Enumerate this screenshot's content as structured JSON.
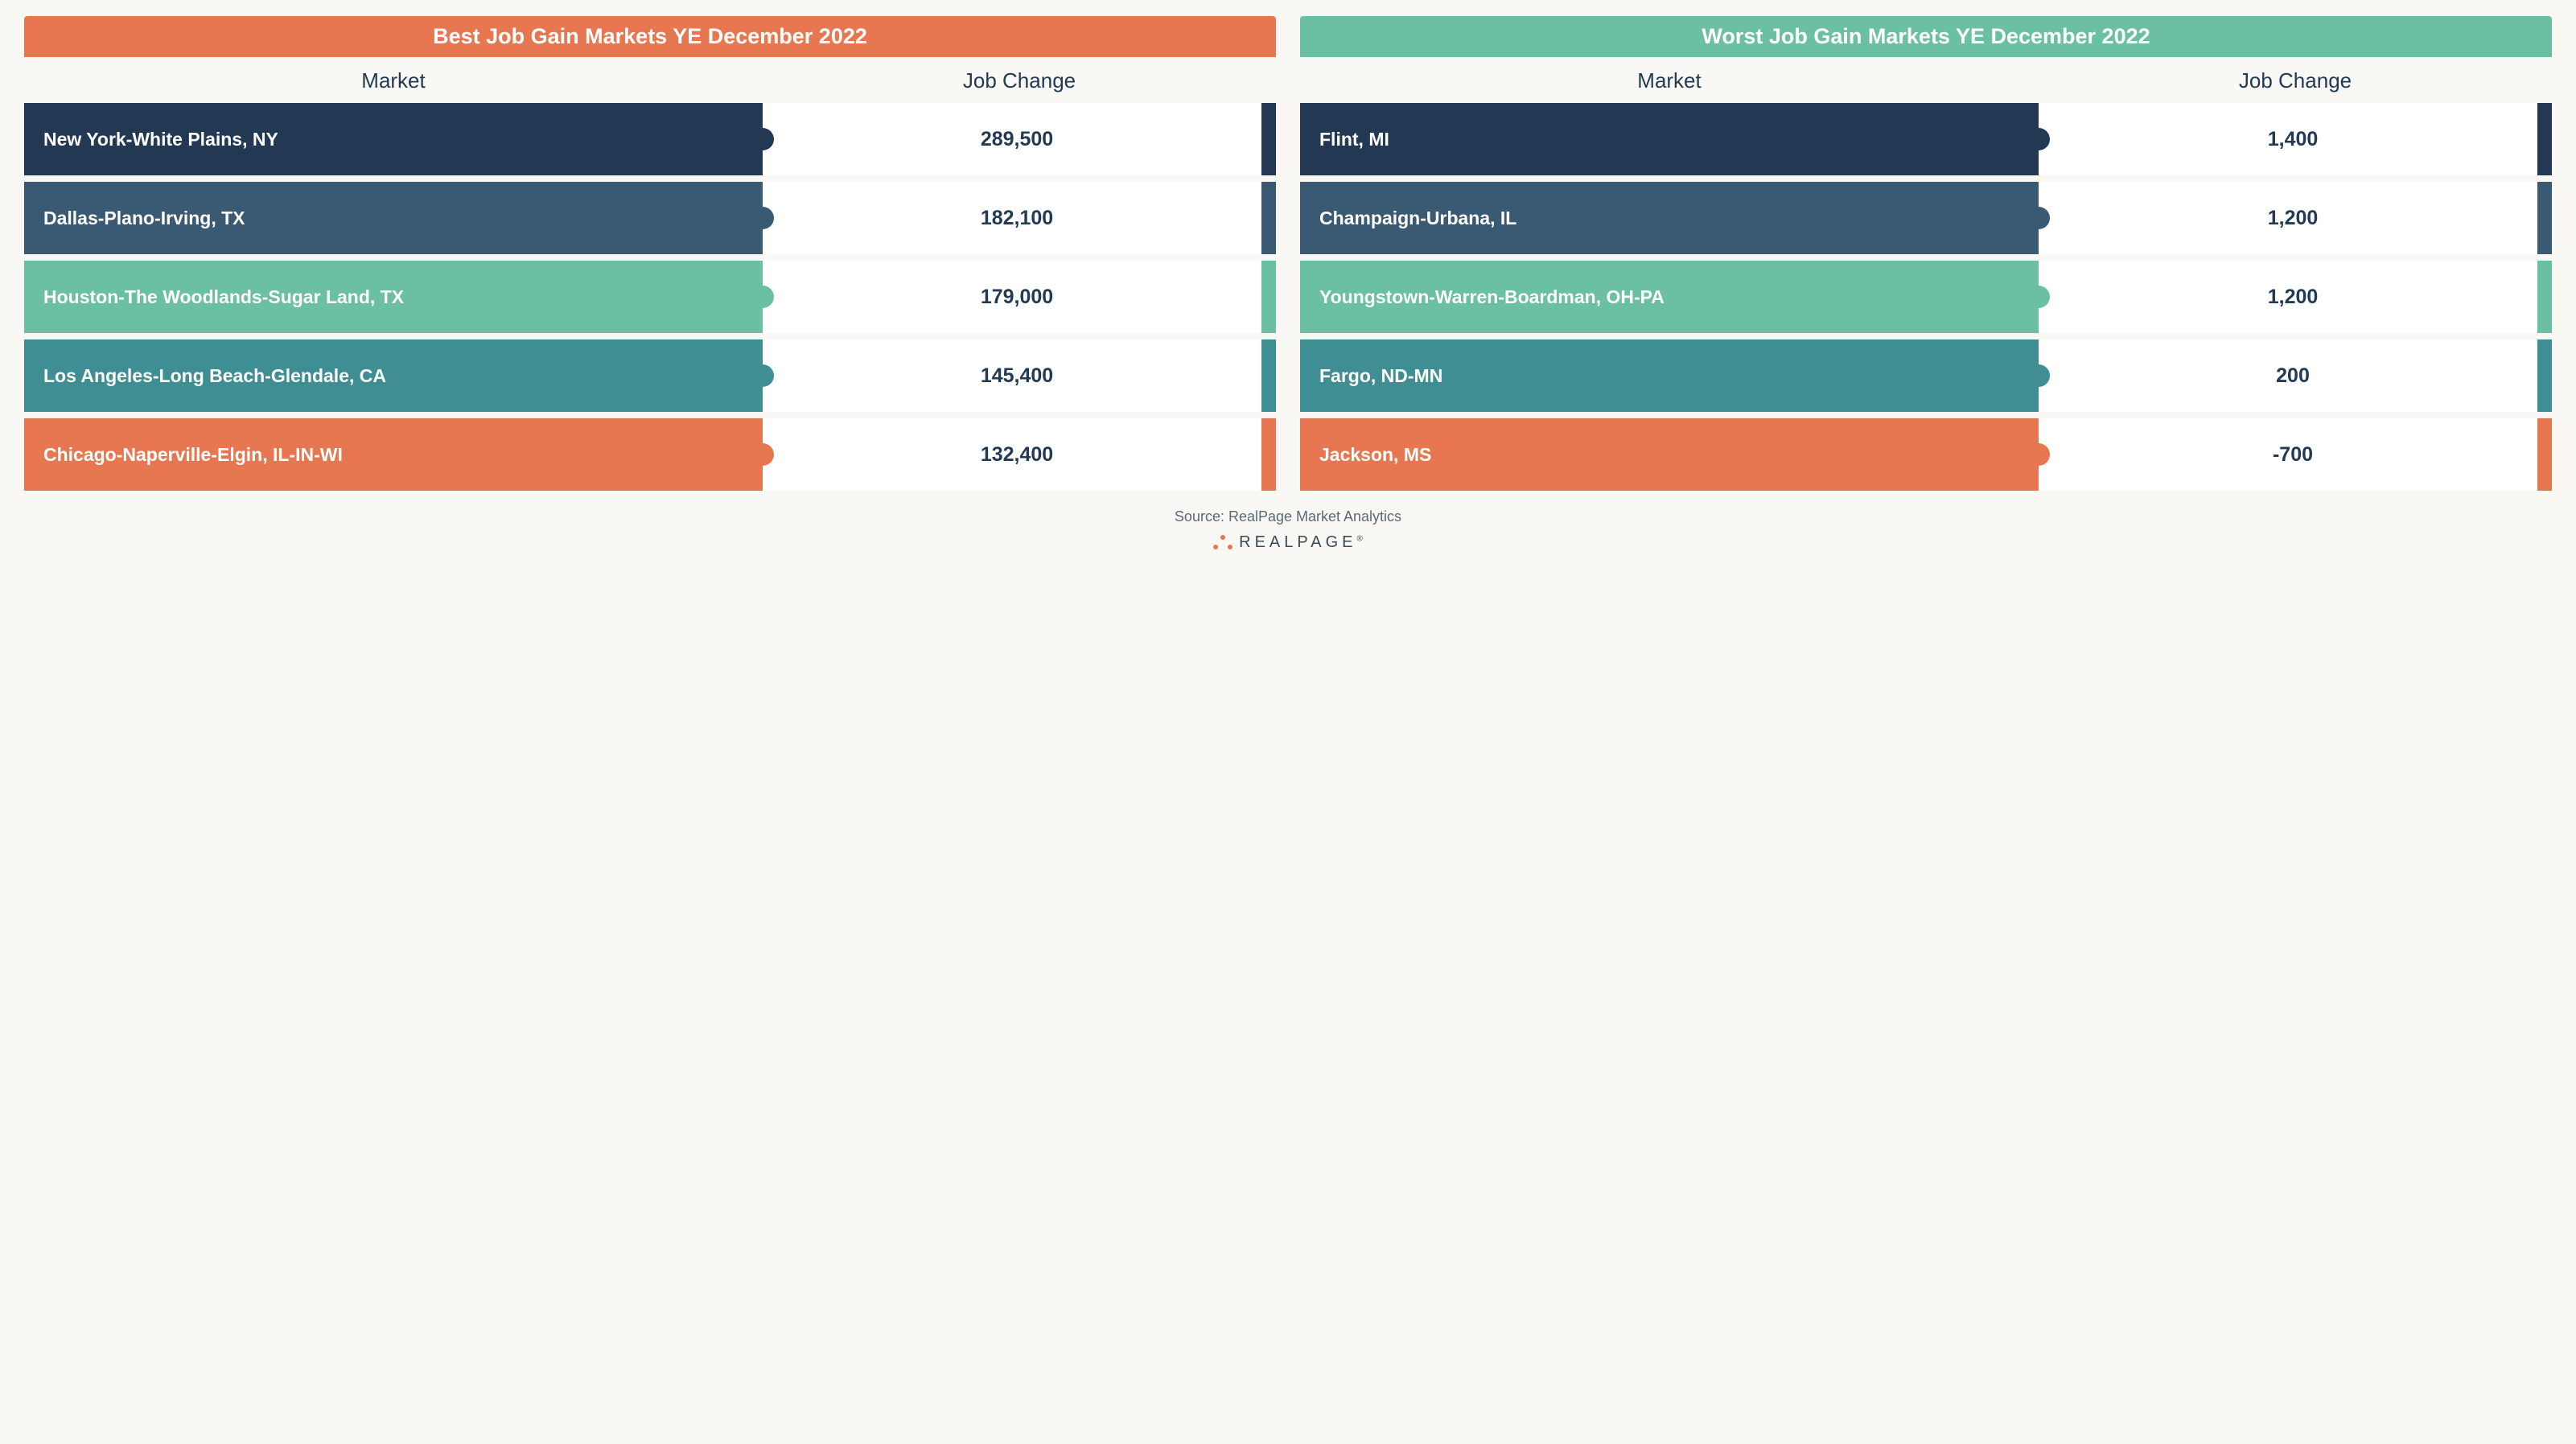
{
  "colors": {
    "background": "#f9f8f4",
    "text_dark": "#223a53",
    "white": "#ffffff",
    "row_palette": [
      "#233853",
      "#3a5a74",
      "#6bbfa3",
      "#3f8e93",
      "#e77750"
    ]
  },
  "typography": {
    "title_fontsize": 27,
    "header_fontsize": 26,
    "market_fontsize": 23,
    "value_fontsize": 25,
    "footer_fontsize": 18,
    "logo_fontsize": 20
  },
  "layout": {
    "panel_gap": 30,
    "row_gap": 8,
    "row_min_height": 90,
    "market_col_width_pct": 59,
    "end_stripe_width": 18
  },
  "panels": [
    {
      "title": "Best Job Gain Markets YE December 2022",
      "title_bg": "#e77750",
      "header_market": "Market",
      "header_change": "Job Change",
      "rows": [
        {
          "market": "New York-White Plains, NY",
          "change": "289,500",
          "color": "#233853"
        },
        {
          "market": "Dallas-Plano-Irving, TX",
          "change": "182,100",
          "color": "#3a5a74"
        },
        {
          "market": "Houston-The Woodlands-Sugar Land, TX",
          "change": "179,000",
          "color": "#6bbfa3"
        },
        {
          "market": "Los Angeles-Long Beach-Glendale, CA",
          "change": "145,400",
          "color": "#3f8e93"
        },
        {
          "market": "Chicago-Naperville-Elgin, IL-IN-WI",
          "change": "132,400",
          "color": "#e77750"
        }
      ]
    },
    {
      "title": "Worst Job Gain Markets YE December 2022",
      "title_bg": "#6bbfa3",
      "header_market": "Market",
      "header_change": "Job Change",
      "rows": [
        {
          "market": "Flint, MI",
          "change": "1,400",
          "color": "#233853"
        },
        {
          "market": "Champaign-Urbana, IL",
          "change": "1,200",
          "color": "#3a5a74"
        },
        {
          "market": "Youngstown-Warren-Boardman, OH-PA",
          "change": "1,200",
          "color": "#6bbfa3"
        },
        {
          "market": "Fargo, ND-MN",
          "change": "200",
          "color": "#3f8e93"
        },
        {
          "market": "Jackson, MS",
          "change": "-700",
          "color": "#e77750"
        }
      ]
    }
  ],
  "footer": {
    "source": "Source: RealPage Market Analytics",
    "logo_text": "REALPAGE"
  }
}
